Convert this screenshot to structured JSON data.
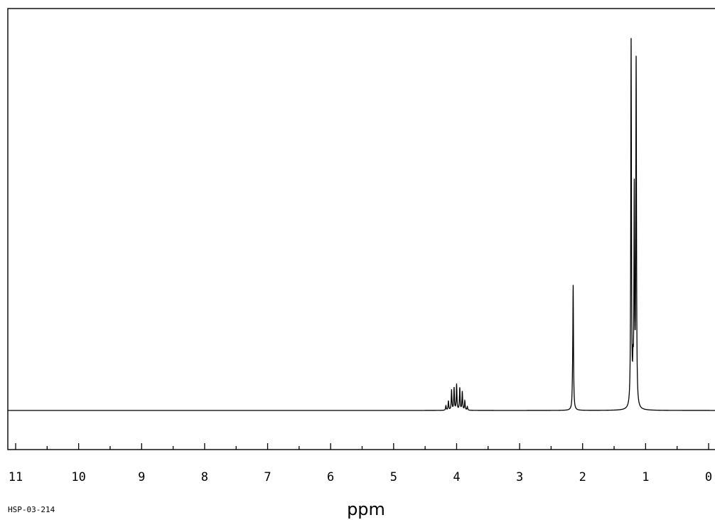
{
  "chart_data": {
    "type": "line",
    "xlabel": "ppm",
    "sample_code": "HSP-03-214",
    "x_reversed": true,
    "xlim": [
      11,
      0
    ],
    "ylim": [
      -0.12,
      1.1
    ],
    "grid": false,
    "legend": "none",
    "x_tick_labels": [
      "11",
      "10",
      "9",
      "8",
      "7",
      "6",
      "5",
      "4",
      "3",
      "2",
      "1",
      "0"
    ],
    "x_major_ticks": [
      11,
      10,
      9,
      8,
      7,
      6,
      5,
      4,
      3,
      2,
      1,
      0
    ],
    "x_minor_step": 0.5,
    "series": [
      {
        "peaks": [
          {
            "ppm": 4.17,
            "height": 0.012
          },
          {
            "ppm": 4.13,
            "height": 0.025
          },
          {
            "ppm": 4.08,
            "height": 0.055
          },
          {
            "ppm": 4.04,
            "height": 0.06
          },
          {
            "ppm": 4.0,
            "height": 0.07
          },
          {
            "ppm": 3.95,
            "height": 0.06
          },
          {
            "ppm": 3.91,
            "height": 0.05
          },
          {
            "ppm": 3.87,
            "height": 0.025
          },
          {
            "ppm": 3.83,
            "height": 0.01
          },
          {
            "ppm": 2.15,
            "height": 0.33
          },
          {
            "ppm": 2.16,
            "height": 0.035
          },
          {
            "ppm": 1.23,
            "height": 0.99
          },
          {
            "ppm": 1.2,
            "height": 0.08
          },
          {
            "ppm": 1.18,
            "height": 0.57
          },
          {
            "ppm": 1.15,
            "height": 0.93
          }
        ]
      }
    ]
  }
}
